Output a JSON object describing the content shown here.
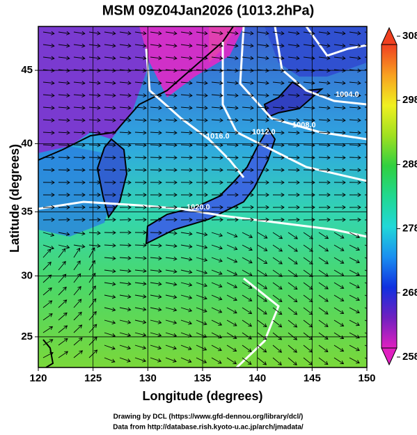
{
  "title": "MSM 09Z04Jan2026 (1013.2hPa)",
  "x_label": "Longitude (degrees)",
  "y_label": "Latitude  (degrees)",
  "xlim": [
    120,
    150
  ],
  "ylim": [
    22.4,
    47.8
  ],
  "xticks": [
    120,
    125,
    130,
    135,
    140,
    145,
    150
  ],
  "yticks": [
    25,
    30,
    35,
    40,
    45
  ],
  "colorbar": {
    "lim": [
      258,
      308
    ],
    "ticks": [
      258,
      268,
      278,
      288,
      298,
      308
    ]
  },
  "contour_labels": [
    "1004.0",
    "1008.0",
    "1012.0",
    "1016.0",
    "1020.0"
  ],
  "footer": [
    "Drawing by DCL (https://www.gfd-dennou.org/library/dcl/)",
    "Data from http://database.rish.kyoto-u.ac.jp/arch/jmadata/"
  ]
}
